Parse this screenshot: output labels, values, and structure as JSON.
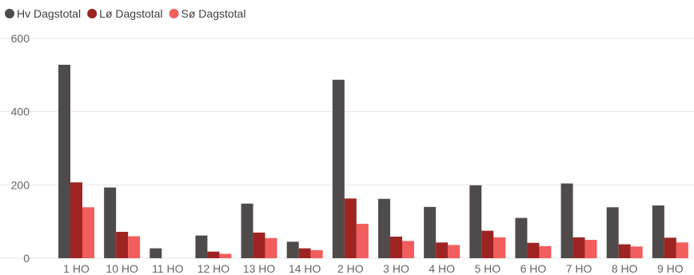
{
  "chart_data": {
    "type": "bar",
    "categories": [
      "1 HO",
      "10 HO",
      "11 HO",
      "12 HO",
      "13 HO",
      "14 HO",
      "2 HO",
      "3 HO",
      "4 HO",
      "5 HO",
      "6 HO",
      "7 HO",
      "8 HO",
      "9 HO"
    ],
    "series": [
      {
        "name": "Hv Dagstotal",
        "color": "#504b4b",
        "values": [
          528,
          193,
          27,
          62,
          149,
          45,
          487,
          162,
          140,
          199,
          110,
          204,
          139,
          144
        ]
      },
      {
        "name": "Lø Dagstotal",
        "color": "#9e2424",
        "values": [
          207,
          72,
          0,
          18,
          70,
          27,
          163,
          59,
          43,
          75,
          42,
          57,
          38,
          56
        ]
      },
      {
        "name": "Sø Dagstotal",
        "color": "#f25d5d",
        "values": [
          139,
          60,
          0,
          12,
          55,
          22,
          94,
          47,
          36,
          57,
          33,
          50,
          32,
          43
        ]
      }
    ],
    "ylim": [
      0,
      600
    ],
    "yticks": [
      "600",
      "400",
      "200",
      "0"
    ],
    "title": "",
    "xlabel": "",
    "ylabel": "",
    "grid": true,
    "legend": "top-left"
  }
}
